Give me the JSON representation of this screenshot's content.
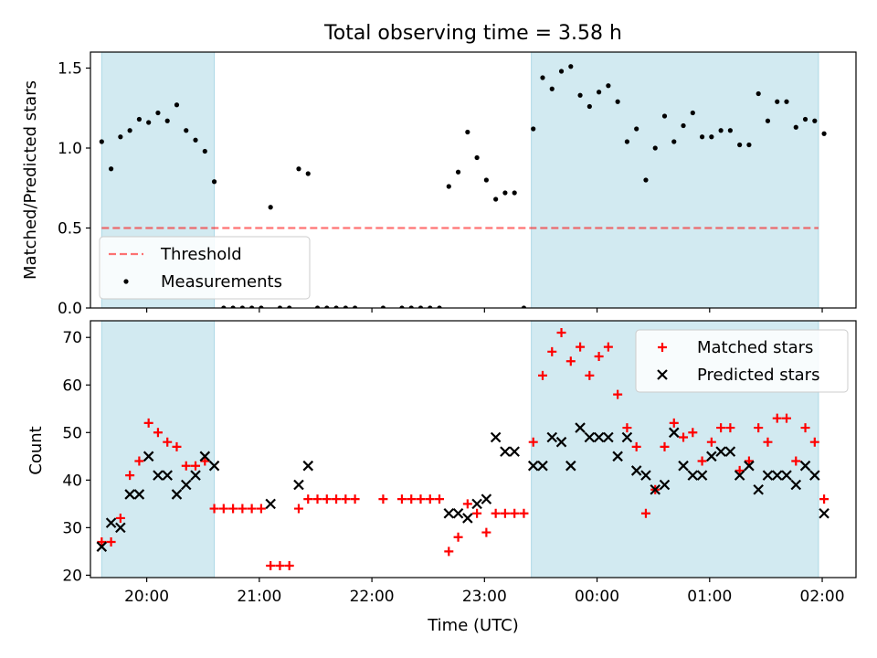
{
  "title": "Total observing time = 3.58 h",
  "colors": {
    "shade": "#add8e6",
    "threshold": "#ff0000",
    "measurement": "#000000",
    "matched": "#ff0000",
    "predicted": "#000000"
  },
  "chart_data": [
    {
      "type": "scatter",
      "panel": "top",
      "xlabel": "",
      "ylabel": "Matched/Predicted stars",
      "xlim": [
        "19:30",
        "02:18"
      ],
      "ylim": [
        0,
        1.6
      ],
      "yticks": [
        0.0,
        0.5,
        1.0,
        1.5
      ],
      "ytick_labels": [
        "0.0",
        "0.5",
        "1.0",
        "1.5"
      ],
      "grid": false,
      "legend_position": "lower-left",
      "shaded_intervals": [
        [
          "19:36",
          "20:36"
        ],
        [
          "23:25",
          "01:58"
        ]
      ],
      "threshold": {
        "name": "Threshold",
        "value": 0.5,
        "x_range": [
          "19:36",
          "01:58"
        ]
      },
      "series": [
        {
          "name": "Measurements",
          "points": [
            [
              "19:36",
              1.04
            ],
            [
              "19:41",
              0.87
            ],
            [
              "19:46",
              1.07
            ],
            [
              "19:51",
              1.11
            ],
            [
              "19:56",
              1.18
            ],
            [
              "20:01",
              1.16
            ],
            [
              "20:06",
              1.22
            ],
            [
              "20:11",
              1.17
            ],
            [
              "20:16",
              1.27
            ],
            [
              "20:21",
              1.11
            ],
            [
              "20:26",
              1.05
            ],
            [
              "20:31",
              0.98
            ],
            [
              "20:36",
              0.79
            ],
            [
              "20:41",
              0.0
            ],
            [
              "20:46",
              0.0
            ],
            [
              "20:51",
              0.0
            ],
            [
              "20:56",
              0.0
            ],
            [
              "21:01",
              0.0
            ],
            [
              "21:06",
              0.63
            ],
            [
              "21:11",
              0.0
            ],
            [
              "21:16",
              0.0
            ],
            [
              "21:21",
              0.87
            ],
            [
              "21:26",
              0.84
            ],
            [
              "21:31",
              0.0
            ],
            [
              "21:36",
              0.0
            ],
            [
              "21:41",
              0.0
            ],
            [
              "21:46",
              0.0
            ],
            [
              "21:51",
              0.0
            ],
            [
              "22:06",
              0.0
            ],
            [
              "22:16",
              0.0
            ],
            [
              "22:21",
              0.0
            ],
            [
              "22:26",
              0.0
            ],
            [
              "22:31",
              0.0
            ],
            [
              "22:36",
              0.0
            ],
            [
              "22:41",
              0.76
            ],
            [
              "22:46",
              0.85
            ],
            [
              "22:51",
              1.1
            ],
            [
              "22:56",
              0.94
            ],
            [
              "23:01",
              0.8
            ],
            [
              "23:06",
              0.68
            ],
            [
              "23:11",
              0.72
            ],
            [
              "23:16",
              0.72
            ],
            [
              "23:21",
              0.0
            ],
            [
              "23:26",
              1.12
            ],
            [
              "23:31",
              1.44
            ],
            [
              "23:36",
              1.37
            ],
            [
              "23:41",
              1.48
            ],
            [
              "23:46",
              1.51
            ],
            [
              "23:51",
              1.33
            ],
            [
              "23:56",
              1.26
            ],
            [
              "00:01",
              1.35
            ],
            [
              "00:06",
              1.39
            ],
            [
              "00:11",
              1.29
            ],
            [
              "00:16",
              1.04
            ],
            [
              "00:21",
              1.12
            ],
            [
              "00:26",
              0.8
            ],
            [
              "00:31",
              1.0
            ],
            [
              "00:36",
              1.2
            ],
            [
              "00:41",
              1.04
            ],
            [
              "00:46",
              1.14
            ],
            [
              "00:51",
              1.22
            ],
            [
              "00:56",
              1.07
            ],
            [
              "01:01",
              1.07
            ],
            [
              "01:06",
              1.11
            ],
            [
              "01:11",
              1.11
            ],
            [
              "01:16",
              1.02
            ],
            [
              "01:21",
              1.02
            ],
            [
              "01:26",
              1.34
            ],
            [
              "01:31",
              1.17
            ],
            [
              "01:36",
              1.29
            ],
            [
              "01:41",
              1.29
            ],
            [
              "01:46",
              1.13
            ],
            [
              "01:51",
              1.18
            ],
            [
              "01:56",
              1.17
            ],
            [
              "02:01",
              1.09
            ]
          ]
        }
      ]
    },
    {
      "type": "scatter",
      "panel": "bottom",
      "xlabel": "Time (UTC)",
      "ylabel": "Count",
      "xlim": [
        "19:30",
        "02:18"
      ],
      "ylim": [
        19.5,
        73.5
      ],
      "yticks": [
        20,
        30,
        40,
        50,
        60,
        70
      ],
      "xticks": [
        "20:00",
        "21:00",
        "22:00",
        "23:00",
        "00:00",
        "01:00",
        "02:00"
      ],
      "grid": false,
      "legend_position": "upper-right",
      "shaded_intervals": [
        [
          "19:36",
          "20:36"
        ],
        [
          "23:25",
          "01:58"
        ]
      ],
      "series": [
        {
          "name": "Matched stars",
          "marker": "plus",
          "points": [
            [
              "19:36",
              27
            ],
            [
              "19:41",
              27
            ],
            [
              "19:46",
              32
            ],
            [
              "19:51",
              41
            ],
            [
              "19:56",
              44
            ],
            [
              "20:01",
              52
            ],
            [
              "20:06",
              50
            ],
            [
              "20:11",
              48
            ],
            [
              "20:16",
              47
            ],
            [
              "20:21",
              43
            ],
            [
              "20:26",
              43
            ],
            [
              "20:31",
              44
            ],
            [
              "20:36",
              34
            ],
            [
              "20:41",
              34
            ],
            [
              "20:46",
              34
            ],
            [
              "20:51",
              34
            ],
            [
              "20:56",
              34
            ],
            [
              "21:01",
              34
            ],
            [
              "21:06",
              22
            ],
            [
              "21:11",
              22
            ],
            [
              "21:16",
              22
            ],
            [
              "21:21",
              34
            ],
            [
              "21:26",
              36
            ],
            [
              "21:31",
              36
            ],
            [
              "21:36",
              36
            ],
            [
              "21:41",
              36
            ],
            [
              "21:46",
              36
            ],
            [
              "21:51",
              36
            ],
            [
              "22:06",
              36
            ],
            [
              "22:16",
              36
            ],
            [
              "22:21",
              36
            ],
            [
              "22:26",
              36
            ],
            [
              "22:31",
              36
            ],
            [
              "22:36",
              36
            ],
            [
              "22:41",
              25
            ],
            [
              "22:46",
              28
            ],
            [
              "22:51",
              35
            ],
            [
              "22:56",
              33
            ],
            [
              "23:01",
              29
            ],
            [
              "23:06",
              33
            ],
            [
              "23:11",
              33
            ],
            [
              "23:16",
              33
            ],
            [
              "23:21",
              33
            ],
            [
              "23:26",
              48
            ],
            [
              "23:31",
              62
            ],
            [
              "23:36",
              67
            ],
            [
              "23:41",
              71
            ],
            [
              "23:46",
              65
            ],
            [
              "23:51",
              68
            ],
            [
              "23:56",
              62
            ],
            [
              "00:01",
              66
            ],
            [
              "00:06",
              68
            ],
            [
              "00:11",
              58
            ],
            [
              "00:16",
              51
            ],
            [
              "00:21",
              47
            ],
            [
              "00:26",
              33
            ],
            [
              "00:31",
              38
            ],
            [
              "00:36",
              47
            ],
            [
              "00:41",
              52
            ],
            [
              "00:46",
              49
            ],
            [
              "00:51",
              50
            ],
            [
              "00:56",
              44
            ],
            [
              "01:01",
              48
            ],
            [
              "01:06",
              51
            ],
            [
              "01:11",
              51
            ],
            [
              "01:16",
              42
            ],
            [
              "01:21",
              44
            ],
            [
              "01:26",
              51
            ],
            [
              "01:31",
              48
            ],
            [
              "01:36",
              53
            ],
            [
              "01:41",
              53
            ],
            [
              "01:46",
              44
            ],
            [
              "01:51",
              51
            ],
            [
              "01:56",
              48
            ],
            [
              "02:01",
              36
            ]
          ]
        },
        {
          "name": "Predicted stars",
          "marker": "x",
          "points": [
            [
              "19:36",
              26
            ],
            [
              "19:41",
              31
            ],
            [
              "19:46",
              30
            ],
            [
              "19:51",
              37
            ],
            [
              "19:56",
              37
            ],
            [
              "20:01",
              45
            ],
            [
              "20:06",
              41
            ],
            [
              "20:11",
              41
            ],
            [
              "20:16",
              37
            ],
            [
              "20:21",
              39
            ],
            [
              "20:26",
              41
            ],
            [
              "20:31",
              45
            ],
            [
              "20:36",
              43
            ],
            [
              "21:06",
              35
            ],
            [
              "21:21",
              39
            ],
            [
              "21:26",
              43
            ],
            [
              "22:41",
              33
            ],
            [
              "22:46",
              33
            ],
            [
              "22:51",
              32
            ],
            [
              "22:56",
              35
            ],
            [
              "23:01",
              36
            ],
            [
              "23:06",
              49
            ],
            [
              "23:11",
              46
            ],
            [
              "23:16",
              46
            ],
            [
              "23:26",
              43
            ],
            [
              "23:31",
              43
            ],
            [
              "23:36",
              49
            ],
            [
              "23:41",
              48
            ],
            [
              "23:46",
              43
            ],
            [
              "23:51",
              51
            ],
            [
              "23:56",
              49
            ],
            [
              "00:01",
              49
            ],
            [
              "00:06",
              49
            ],
            [
              "00:11",
              45
            ],
            [
              "00:16",
              49
            ],
            [
              "00:21",
              42
            ],
            [
              "00:26",
              41
            ],
            [
              "00:31",
              38
            ],
            [
              "00:36",
              39
            ],
            [
              "00:41",
              50
            ],
            [
              "00:46",
              43
            ],
            [
              "00:51",
              41
            ],
            [
              "00:56",
              41
            ],
            [
              "01:01",
              45
            ],
            [
              "01:06",
              46
            ],
            [
              "01:11",
              46
            ],
            [
              "01:16",
              41
            ],
            [
              "01:21",
              43
            ],
            [
              "01:26",
              38
            ],
            [
              "01:31",
              41
            ],
            [
              "01:36",
              41
            ],
            [
              "01:41",
              41
            ],
            [
              "01:46",
              39
            ],
            [
              "01:51",
              43
            ],
            [
              "01:56",
              41
            ],
            [
              "02:01",
              33
            ]
          ]
        }
      ]
    }
  ]
}
